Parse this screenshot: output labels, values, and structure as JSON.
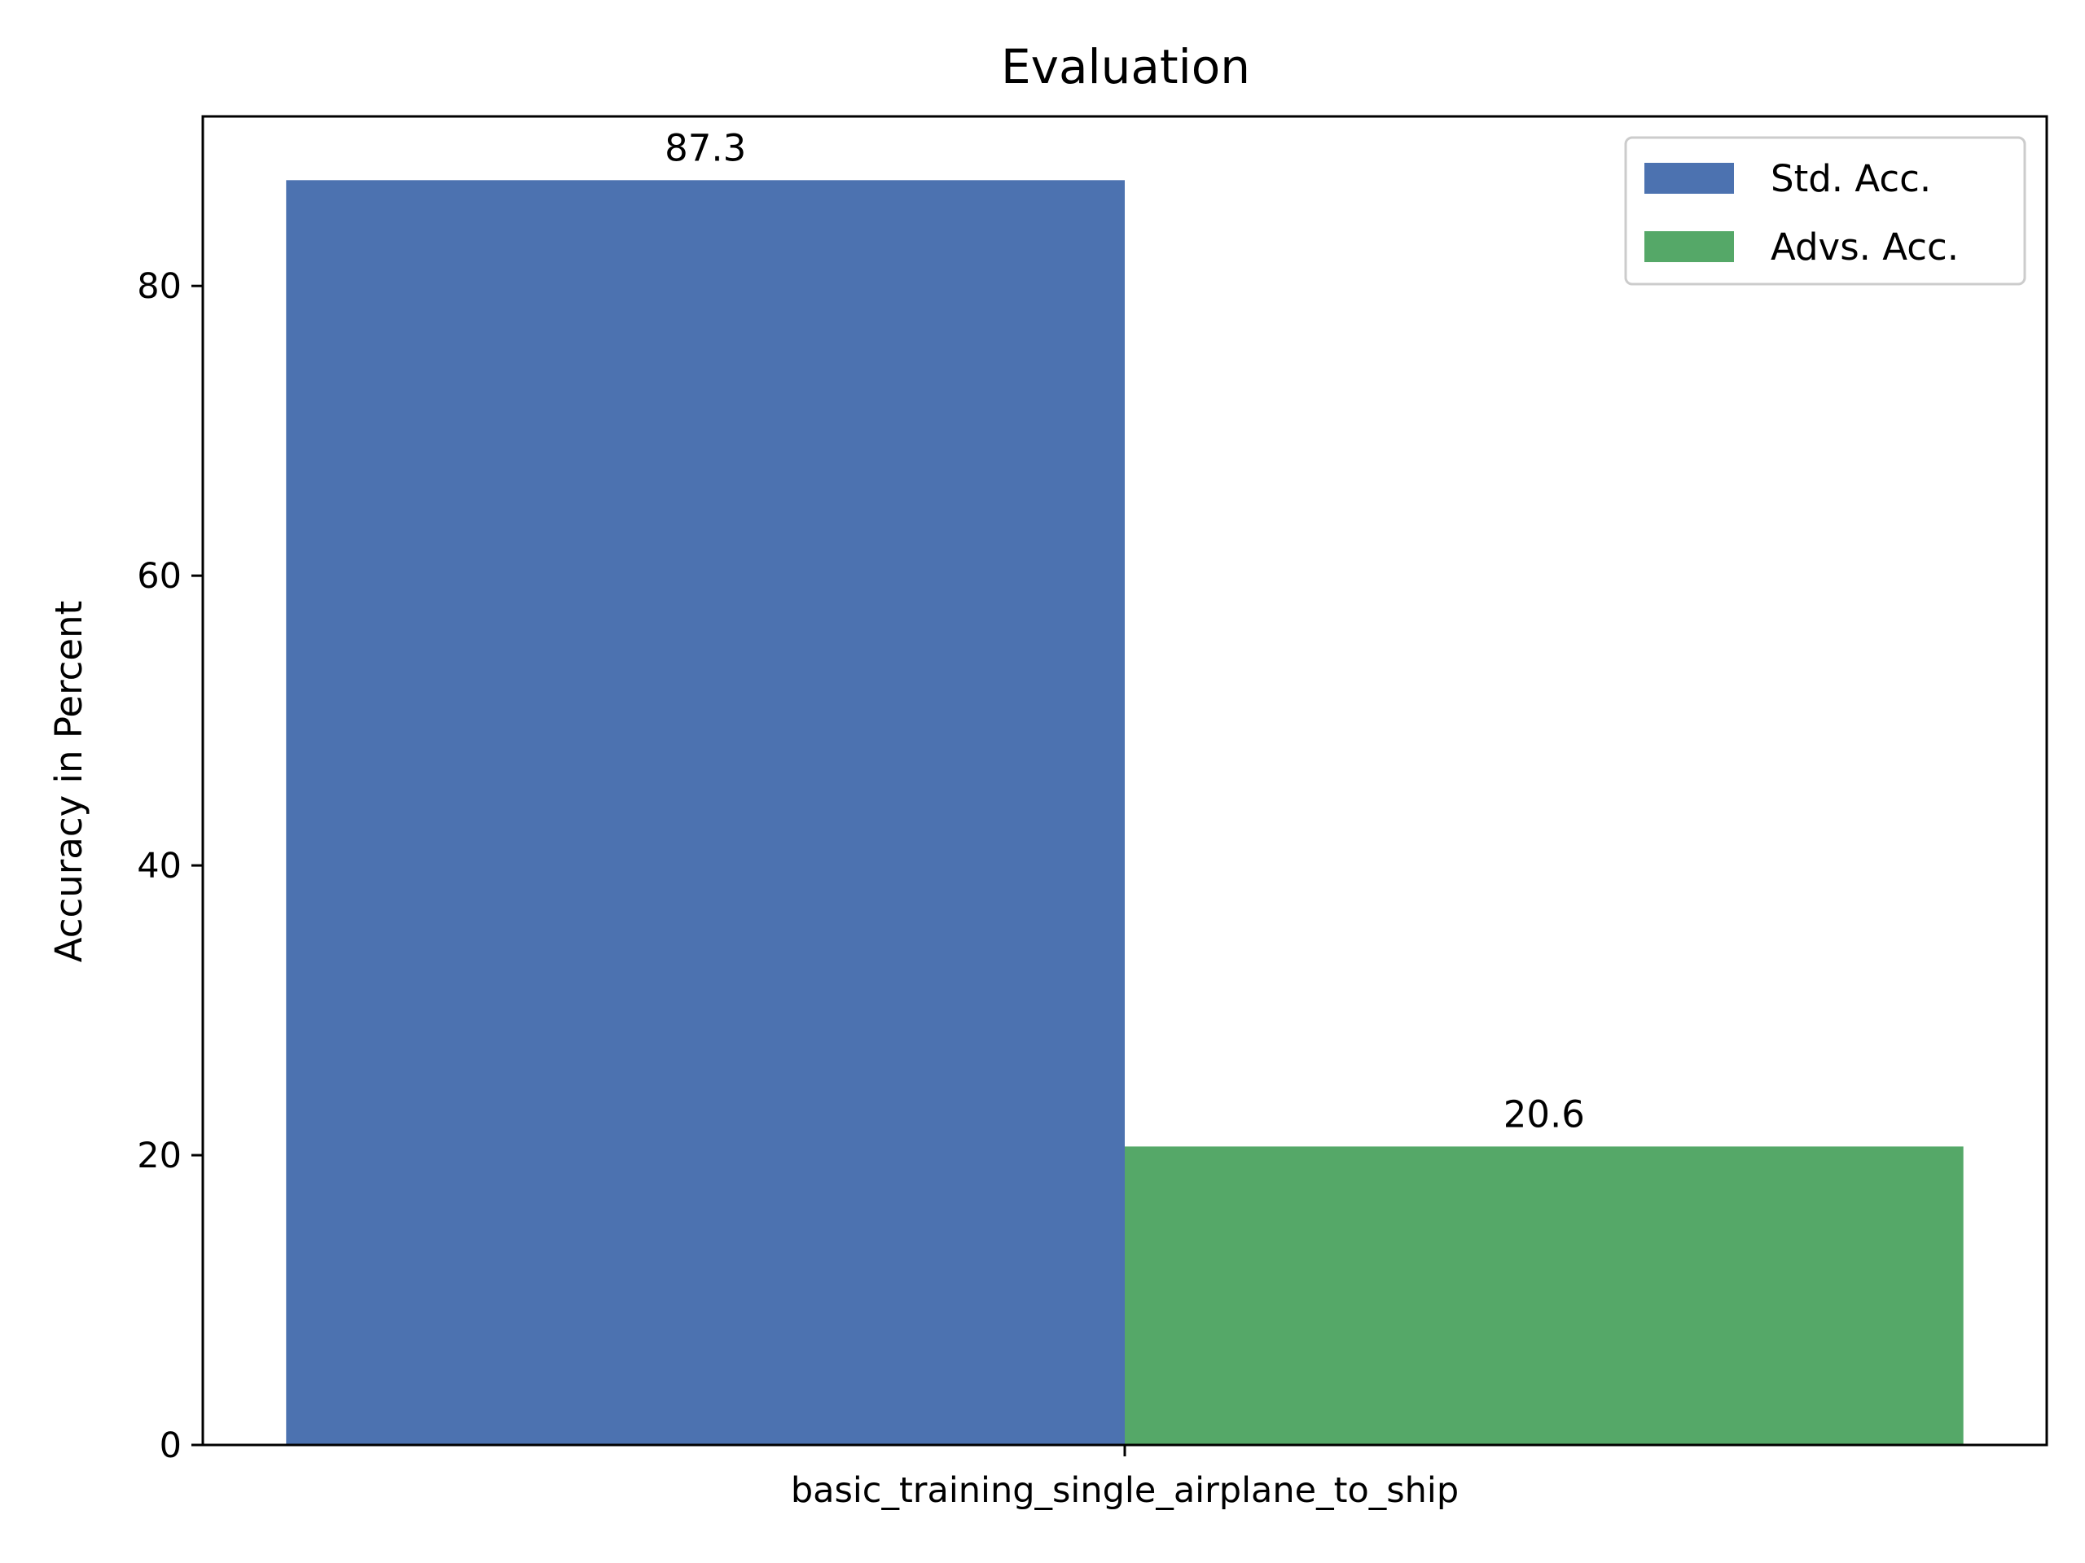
{
  "chart_data": {
    "type": "bar",
    "title": "Evaluation",
    "xlabel": "",
    "ylabel": "Accuracy in Percent",
    "categories": [
      "basic_training_single_airplane_to_ship"
    ],
    "series": [
      {
        "name": "Std. Acc.",
        "values": [
          87.3
        ],
        "color": "#4c72b0",
        "label": "87.3"
      },
      {
        "name": "Advs. Acc.",
        "values": [
          20.6
        ],
        "color": "#55a868",
        "label": "20.6"
      }
    ],
    "ylim": [
      0,
      91.7
    ],
    "yticks": [
      0,
      20,
      40,
      60,
      80
    ],
    "grid": false,
    "legend": "top-right"
  }
}
